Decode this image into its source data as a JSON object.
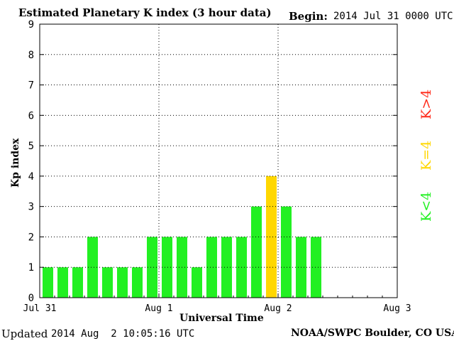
{
  "header": {
    "title": "Estimated Planetary K index (3 hour data)",
    "begin_label": "Begin:",
    "begin_value": "2014 Jul 31 0000 UTC"
  },
  "footer": {
    "updated_label": "Updated",
    "updated_value": "2014 Aug  2 10:05:16 UTC",
    "source": "NOAA/SWPC Boulder, CO USA"
  },
  "legend": {
    "gt4": "K>4",
    "eq4": "K=4",
    "lt4": "K<4"
  },
  "colors": {
    "lt4": "#22f022",
    "eq4": "#ffd700",
    "gt4": "#ff2a1a",
    "grid": "#000000"
  },
  "chart_data": {
    "type": "bar",
    "title": "Estimated Planetary K index (3 hour data)",
    "xlabel": "Universal Time",
    "ylabel": "Kp index",
    "ylim": [
      0,
      9
    ],
    "yticks": [
      0,
      1,
      2,
      3,
      4,
      5,
      6,
      7,
      8,
      9
    ],
    "xticks": [
      "Jul 31",
      "Aug 1",
      "Aug 2",
      "Aug 3"
    ],
    "x_range_days": 3,
    "bar_period_hours": 3,
    "grid": true,
    "values": [
      1,
      1,
      1,
      2,
      1,
      1,
      1,
      2,
      2,
      2,
      1,
      2,
      2,
      2,
      3,
      4,
      3,
      2,
      2
    ],
    "color_rule": "K<4 green, K=4 yellow, K>4 red"
  }
}
